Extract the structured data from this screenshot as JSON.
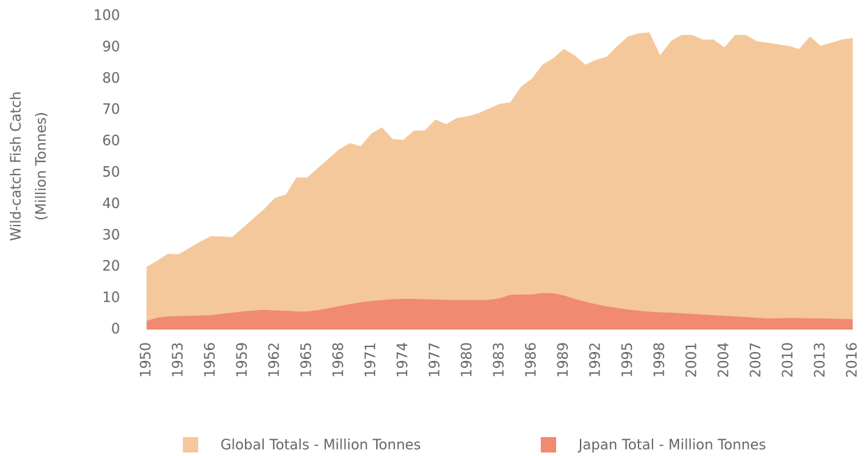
{
  "chart_data": {
    "type": "area",
    "ylabel": [
      "Wild-catch Fish Catch",
      "(Million Tonnes)"
    ],
    "x": [
      1950,
      1951,
      1952,
      1953,
      1954,
      1955,
      1956,
      1957,
      1958,
      1959,
      1960,
      1961,
      1962,
      1963,
      1964,
      1965,
      1966,
      1967,
      1968,
      1969,
      1970,
      1971,
      1972,
      1973,
      1974,
      1975,
      1976,
      1977,
      1978,
      1979,
      1980,
      1981,
      1982,
      1983,
      1984,
      1985,
      1986,
      1987,
      1988,
      1989,
      1990,
      1991,
      1992,
      1993,
      1994,
      1995,
      1996,
      1997,
      1998,
      1999,
      2000,
      2001,
      2002,
      2003,
      2004,
      2005,
      2006,
      2007,
      2008,
      2009,
      2010,
      2011,
      2012,
      2013,
      2014,
      2015,
      2016
    ],
    "series": [
      {
        "name": "Global Totals - Million Tonnes",
        "color": "#f4c89a",
        "values": [
          20,
          22,
          24.2,
          24,
          26,
          28,
          29.8,
          29.7,
          29.5,
          32.5,
          35.5,
          38.5,
          42,
          43,
          48.5,
          48.5,
          51.5,
          54.5,
          57.5,
          59.5,
          58.5,
          62.5,
          64.5,
          60.8,
          60.5,
          63.5,
          63.5,
          67,
          65.5,
          67.5,
          68,
          69,
          70.5,
          72,
          72.5,
          77.5,
          80,
          84.5,
          86.5,
          89.5,
          87.5,
          84.5,
          86,
          87,
          90.5,
          93.5,
          94.5,
          94.8,
          87.5,
          92,
          94,
          94,
          92.5,
          92.5,
          90,
          94,
          94,
          92,
          91.5,
          91,
          90.5,
          89.5,
          93.5,
          90.5,
          91.5,
          92.5,
          93
        ]
      },
      {
        "name": "Japan Total - Million Tonnes",
        "color": "#f08a70",
        "values": [
          2.8,
          3.8,
          4.2,
          4.3,
          4.4,
          4.5,
          4.6,
          5,
          5.4,
          5.8,
          6.1,
          6.3,
          6.1,
          6,
          5.8,
          5.8,
          6.2,
          6.8,
          7.5,
          8.1,
          8.7,
          9.1,
          9.4,
          9.7,
          9.8,
          9.8,
          9.7,
          9.6,
          9.5,
          9.4,
          9.4,
          9.4,
          9.5,
          10,
          11.1,
          11.2,
          11.2,
          11.7,
          11.6,
          10.9,
          9.8,
          8.9,
          8.1,
          7.4,
          6.9,
          6.4,
          6,
          5.7,
          5.5,
          5.4,
          5.2,
          5,
          4.8,
          4.6,
          4.4,
          4.2,
          4,
          3.8,
          3.6,
          3.6,
          3.7,
          3.7,
          3.6,
          3.6,
          3.5,
          3.4,
          3.3
        ]
      }
    ],
    "xlim": [
      1950,
      2016
    ],
    "xticks": [
      1950,
      1953,
      1956,
      1959,
      1962,
      1965,
      1968,
      1971,
      1974,
      1977,
      1980,
      1983,
      1986,
      1989,
      1992,
      1995,
      1998,
      2001,
      2004,
      2007,
      2010,
      2013,
      2016
    ],
    "ylim": [
      0,
      100
    ],
    "yticks": [
      0,
      10,
      20,
      30,
      40,
      50,
      60,
      70,
      80,
      90,
      100
    ],
    "grid": false,
    "legend": "bottom"
  }
}
